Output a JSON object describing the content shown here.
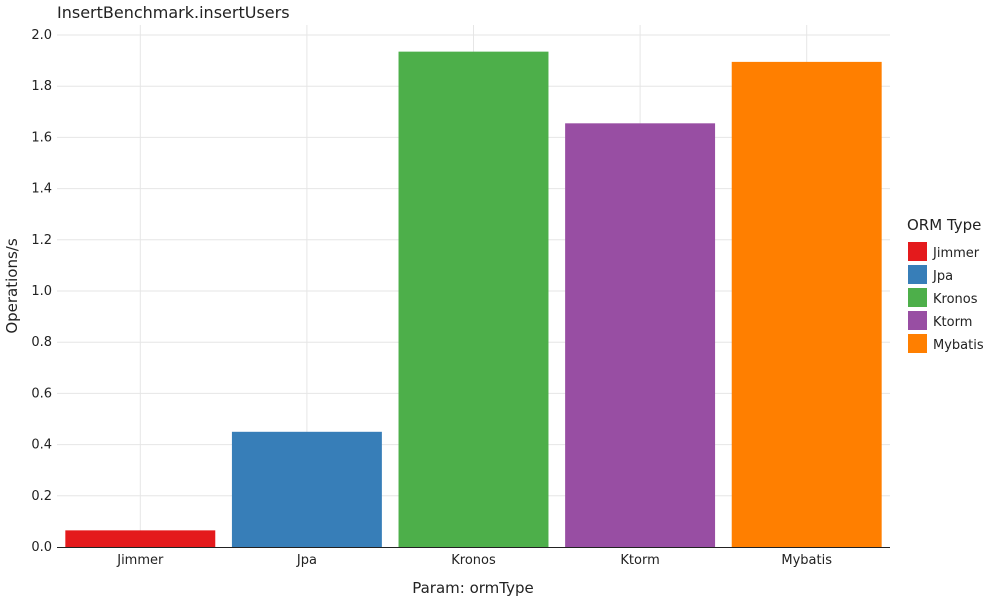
{
  "chart_data": {
    "type": "bar",
    "title": "InsertBenchmark.insertUsers",
    "xlabel": "Param: ormType",
    "ylabel": "Operations/s",
    "categories": [
      "Jimmer",
      "Jpa",
      "Kronos",
      "Ktorm",
      "Mybatis"
    ],
    "values": [
      0.065,
      0.45,
      1.935,
      1.655,
      1.895
    ],
    "colors": [
      "#e41a1c",
      "#377eb8",
      "#4daf4a",
      "#984ea3",
      "#ff7f00"
    ],
    "ylim": [
      0,
      2.0
    ],
    "yticks": [
      "0.0",
      "0.2",
      "0.4",
      "0.6",
      "0.8",
      "1.0",
      "1.2",
      "1.4",
      "1.6",
      "1.8",
      "2.0"
    ],
    "grid": true,
    "legend": {
      "title": "ORM Type",
      "position": "right",
      "entries": [
        "Jimmer",
        "Jpa",
        "Kronos",
        "Ktorm",
        "Mybatis"
      ]
    }
  }
}
